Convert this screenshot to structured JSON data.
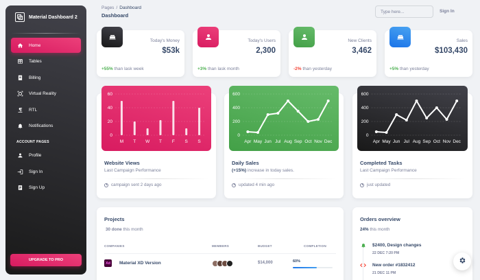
{
  "brand": {
    "name": "Material Dashboard 2"
  },
  "sidebar": {
    "items": [
      {
        "label": "Home",
        "icon": "home-icon"
      },
      {
        "label": "Tables",
        "icon": "table-icon"
      },
      {
        "label": "Billing",
        "icon": "receipt-icon"
      },
      {
        "label": "Virtual Reality",
        "icon": "view-in-ar-icon"
      },
      {
        "label": "RTL",
        "icon": "format-textdirection-icon"
      },
      {
        "label": "Notifications",
        "icon": "bell-icon"
      }
    ],
    "section_title": "ACCOUNT PAGES",
    "account_items": [
      {
        "label": "Profile",
        "icon": "person-icon"
      },
      {
        "label": "Sign In",
        "icon": "login-icon"
      },
      {
        "label": "Sign Up",
        "icon": "assignment-icon"
      }
    ],
    "upgrade_label": "UPGRADE TO PRO"
  },
  "header": {
    "breadcrumb_root": "Pages",
    "breadcrumb_sep": "/",
    "breadcrumb_current": "Dashboard",
    "title": "Dashboard",
    "search_placeholder": "Type here...",
    "signin_label": "Sign In"
  },
  "stats": [
    {
      "label": "Today's Money",
      "value": "$53k",
      "change": "+55%",
      "change_text": "than lask week",
      "trend": "positive",
      "icon": "weekend-icon",
      "color": "#191919"
    },
    {
      "label": "Today's Users",
      "value": "2,300",
      "change": "+3%",
      "change_text": "than lask month",
      "trend": "positive",
      "icon": "person-icon",
      "color": "#d81b60"
    },
    {
      "label": "New Clients",
      "value": "3,462",
      "change": "-2%",
      "change_text": "than yesterday",
      "trend": "negative",
      "icon": "person-add-icon",
      "color": "#43a047"
    },
    {
      "label": "Sales",
      "value": "$103,430",
      "change": "+5%",
      "change_text": "than yesterday",
      "trend": "positive",
      "icon": "weekend-icon",
      "color": "#1a73e8"
    }
  ],
  "charts": [
    {
      "title": "Website Views",
      "subtitle": "Last Campaign Performance",
      "highlight": "",
      "footer": "campaign sent 2 days ago",
      "bg": "#e91e63"
    },
    {
      "title": "Daily Sales",
      "subtitle": "increase in today sales.",
      "highlight": "(+15%)",
      "footer": "updated 4 min ago",
      "bg": "#4caf50"
    },
    {
      "title": "Completed Tasks",
      "subtitle": "Last Campaign Performance",
      "highlight": "",
      "footer": "just updated",
      "bg": "#262626"
    }
  ],
  "chart_data": [
    {
      "type": "bar",
      "categories": [
        "M",
        "T",
        "W",
        "T",
        "F",
        "S",
        "S"
      ],
      "values": [
        50,
        20,
        10,
        22,
        50,
        10,
        40
      ],
      "yticks": [
        "0",
        "20",
        "40",
        "60"
      ],
      "ylim": [
        0,
        60
      ]
    },
    {
      "type": "line",
      "categories": [
        "Apr",
        "May",
        "Jun",
        "Jul",
        "Aug",
        "Sep",
        "Oct",
        "Nov",
        "Dec"
      ],
      "values": [
        50,
        40,
        300,
        320,
        500,
        350,
        200,
        230,
        500
      ],
      "yticks": [
        "0",
        "200",
        "400",
        "600"
      ],
      "ylim": [
        0,
        600
      ]
    },
    {
      "type": "line",
      "categories": [
        "Apr",
        "May",
        "Jun",
        "Jul",
        "Aug",
        "Sep",
        "Oct",
        "Nov",
        "Dec"
      ],
      "values": [
        50,
        40,
        300,
        220,
        500,
        250,
        400,
        230,
        500
      ],
      "yticks": [
        "0",
        "200",
        "400",
        "600"
      ],
      "ylim": [
        0,
        600
      ]
    }
  ],
  "projects": {
    "title": "Projects",
    "done_count": "30 done",
    "done_text": "this month",
    "columns": [
      "COMPANIES",
      "MEMBERS",
      "BUDGET",
      "COMPLETION"
    ],
    "rows": [
      {
        "icon_text": "Xd",
        "name": "Material XD Version",
        "budget": "$14,000",
        "completion": "60%",
        "completion_value": 60
      }
    ]
  },
  "orders": {
    "title": "Orders overview",
    "percent": "24%",
    "percent_text": "this month",
    "items": [
      {
        "title": "$2400, Design changes",
        "date": "22 DEC 7:20 PM",
        "icon": "notification-icon",
        "color": "#4caf50"
      },
      {
        "title": "New order #1832412",
        "date": "21 DEC 11 PM",
        "icon": "code-icon",
        "color": "#f44335"
      }
    ]
  }
}
